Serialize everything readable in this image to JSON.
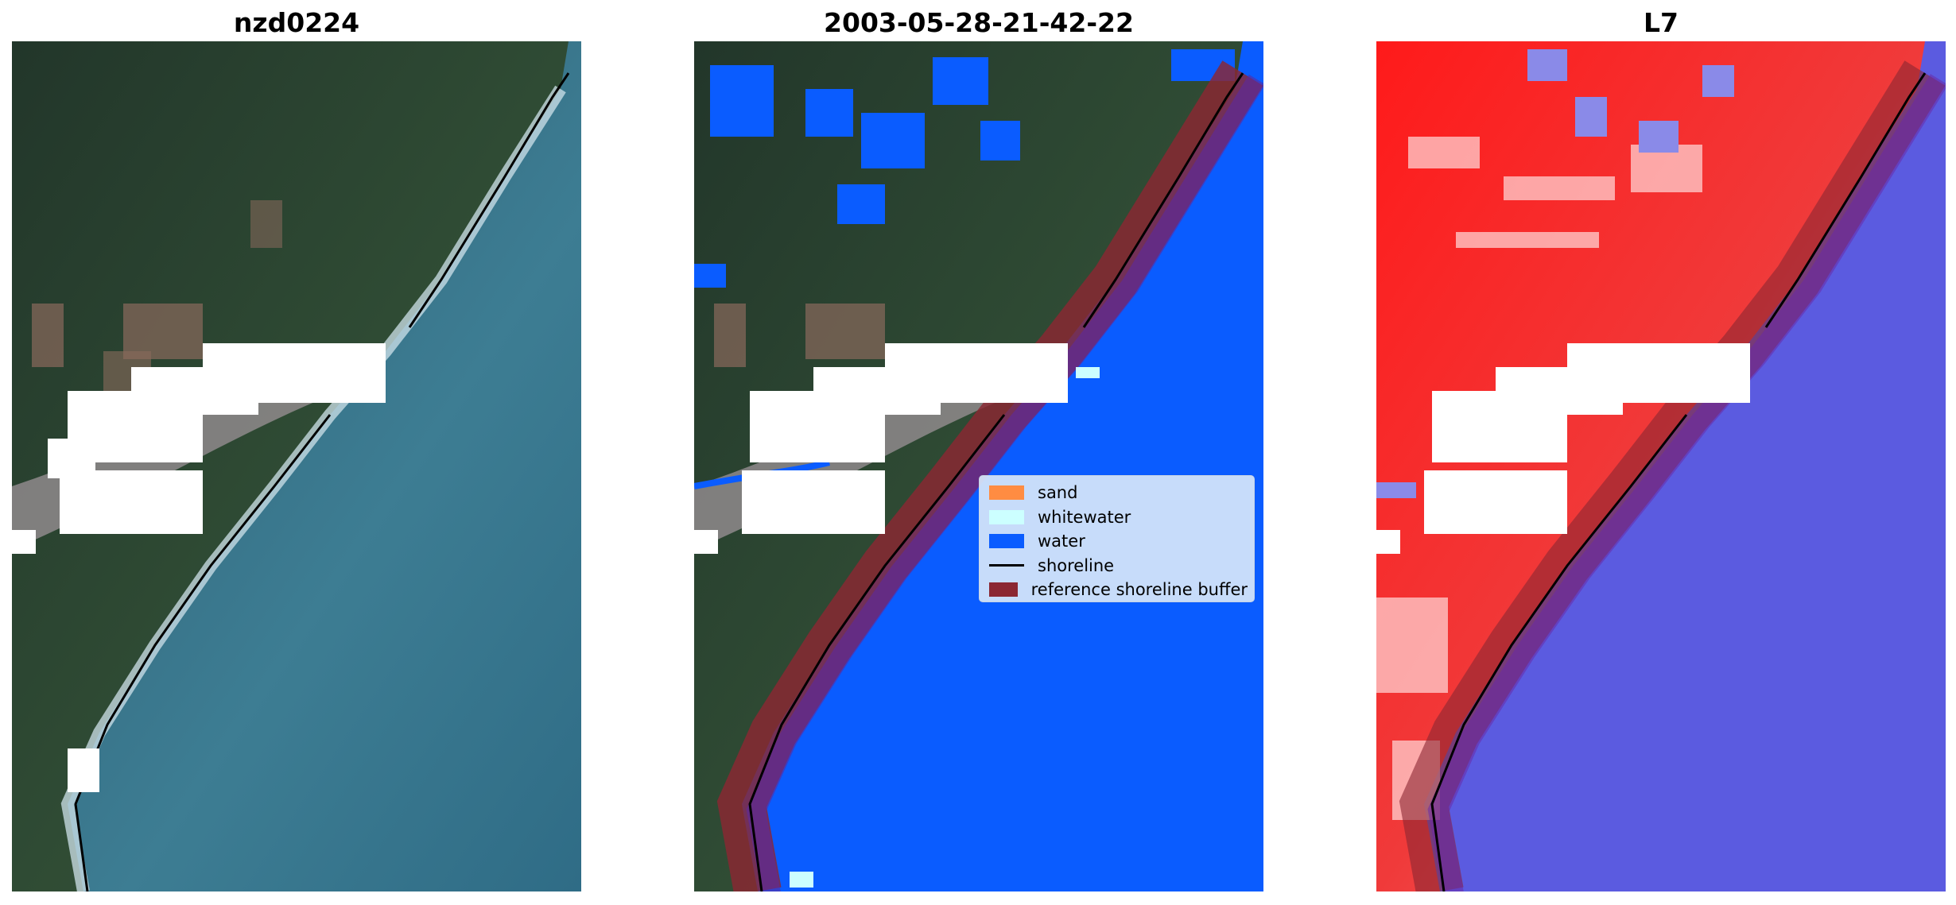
{
  "panels": [
    {
      "title": "nzd0224"
    },
    {
      "title": "2003-05-28-21-42-22"
    },
    {
      "title": "L7"
    }
  ],
  "legend": {
    "items": [
      {
        "label": "sand",
        "color": "#ff8c42",
        "kind": "patch"
      },
      {
        "label": "whitewater",
        "color": "#ccffff",
        "kind": "patch"
      },
      {
        "label": "water",
        "color": "#0a5cff",
        "kind": "patch"
      },
      {
        "label": "shoreline",
        "color": "#000000",
        "kind": "line"
      },
      {
        "label": "reference shoreline buffer",
        "color": "#8b2732",
        "kind": "patch"
      }
    ]
  },
  "colors": {
    "ocean": "#356f86",
    "land": "#2f4a35",
    "water_class": "#0a5cff",
    "buffer": "#8b2732",
    "index_high": "#f01010",
    "index_low": "#5050e0",
    "cloud_mask": "#ffffff"
  }
}
